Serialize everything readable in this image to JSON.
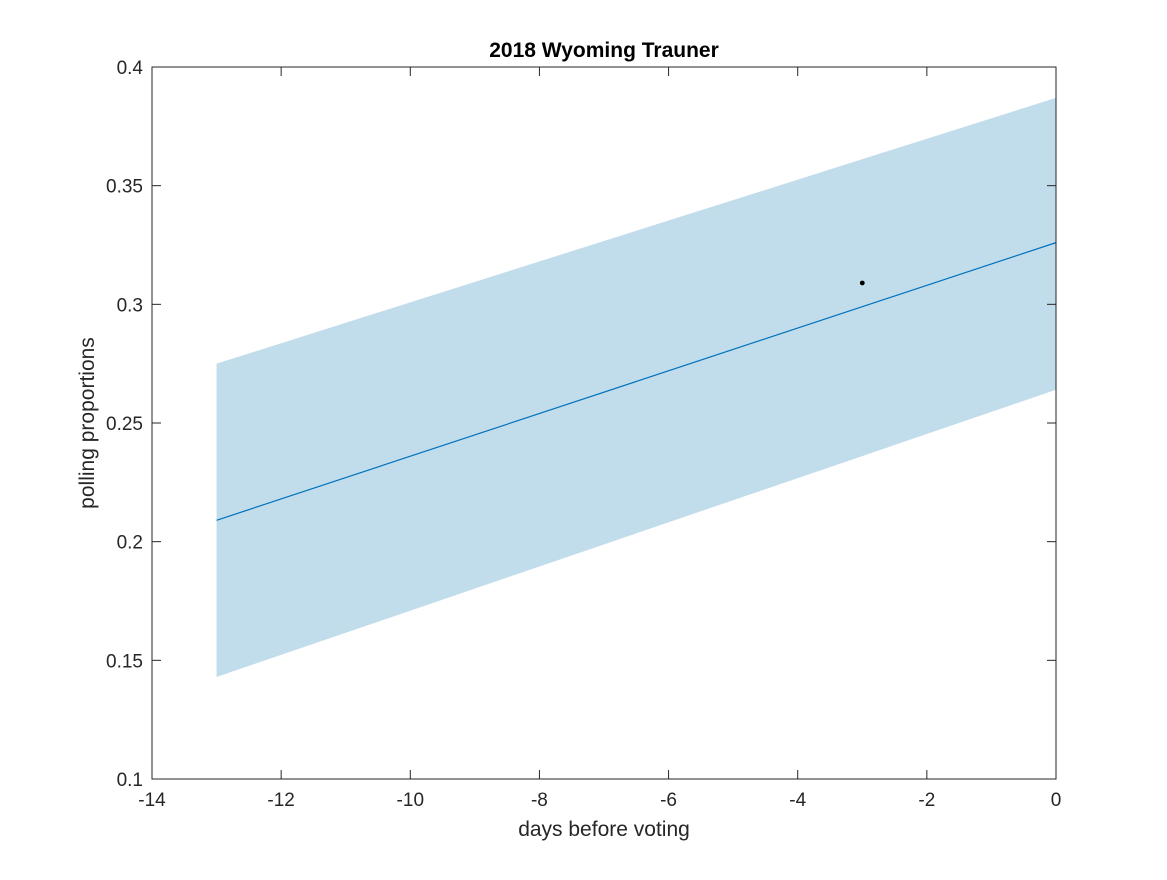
{
  "chart_data": {
    "type": "line",
    "title": "2018 Wyoming Trauner",
    "xlabel": "days before voting",
    "ylabel": "polling proportions",
    "xlim": [
      -14,
      0
    ],
    "ylim": [
      0.1,
      0.4
    ],
    "xticks": [
      -14,
      -12,
      -10,
      -8,
      -6,
      -4,
      -2,
      0
    ],
    "xtick_labels": [
      "-14",
      "-12",
      "-10",
      "-8",
      "-6",
      "-4",
      "-2",
      "0"
    ],
    "yticks": [
      0.1,
      0.15,
      0.2,
      0.25,
      0.3,
      0.35,
      0.4
    ],
    "ytick_labels": [
      "0.1",
      "0.15",
      "0.2",
      "0.25",
      "0.3",
      "0.35",
      "0.4"
    ],
    "grid": false,
    "box": true,
    "band": {
      "x": [
        -13,
        0
      ],
      "upper": [
        0.275,
        0.387
      ],
      "lower": [
        0.143,
        0.264
      ],
      "color": "#c1dceb"
    },
    "trend_line": {
      "x": [
        -13,
        0
      ],
      "y": [
        0.209,
        0.326
      ],
      "color": "#0072bd"
    },
    "points": [
      {
        "x": -3,
        "y": 0.309
      }
    ],
    "point_color": "#000000"
  }
}
